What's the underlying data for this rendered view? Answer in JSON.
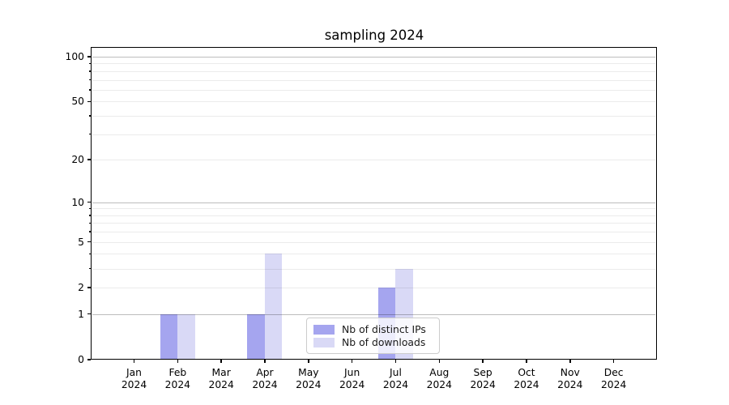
{
  "chart_data": {
    "type": "bar",
    "title": "sampling 2024",
    "x_tick_year": "2024",
    "categories": [
      "Jan",
      "Feb",
      "Mar",
      "Apr",
      "May",
      "Jun",
      "Jul",
      "Aug",
      "Sep",
      "Oct",
      "Nov",
      "Dec"
    ],
    "series": [
      {
        "name": "Nb of distinct IPs",
        "color": "#a5a5ef",
        "values": [
          0,
          1,
          0,
          1,
          0,
          0,
          2,
          0,
          0,
          0,
          0,
          0
        ]
      },
      {
        "name": "Nb of downloads",
        "color": "#d9d9f6",
        "values": [
          0,
          1,
          0,
          4,
          0,
          0,
          3,
          0,
          0,
          0,
          0,
          0
        ]
      }
    ],
    "y_scale": "log1p",
    "y_ticks": [
      0,
      1,
      2,
      5,
      10,
      20,
      50,
      100
    ],
    "y_minor_gridlines": [
      2,
      3,
      4,
      5,
      6,
      7,
      8,
      9,
      20,
      30,
      40,
      50,
      60,
      70,
      80,
      90
    ],
    "y_major_gridlines": [
      1,
      10,
      100
    ],
    "grid": "horizontal",
    "legend_location": "lower-center-inside",
    "colors": {
      "major_grid": "rgba(0,0,0,0.26)",
      "minor_grid": "rgba(0,0,0,0.08)",
      "axis": "#000000",
      "background": "#ffffff"
    }
  }
}
